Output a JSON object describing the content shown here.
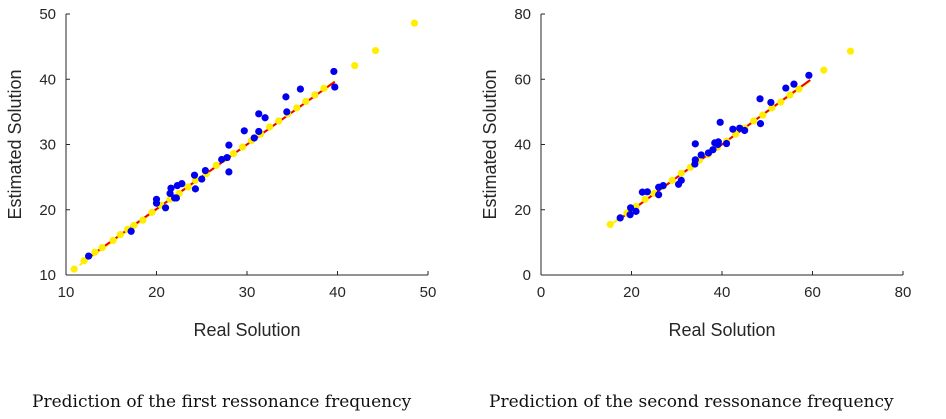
{
  "chart_data": [
    {
      "type": "scatter",
      "caption": "Prediction of the first ressonance frequency",
      "xlabel": "Real Solution",
      "ylabel": "Estimated Solution",
      "xlim": [
        10,
        50
      ],
      "ylim": [
        10,
        50
      ],
      "xticks": [
        10,
        20,
        30,
        40,
        50
      ],
      "yticks": [
        10,
        20,
        30,
        40,
        50
      ],
      "grid": false,
      "colors": {
        "blue": "#0000ee",
        "yellow": "#ffee00",
        "red": "#ee0000"
      },
      "series": [
        {
          "color": "yellow",
          "points": [
            [
              10.9,
              10.9
            ],
            [
              12.0,
              12.2
            ],
            [
              13.2,
              13.5
            ],
            [
              14.0,
              14.2
            ],
            [
              15.2,
              15.3
            ],
            [
              16.0,
              16.2
            ],
            [
              16.8,
              17.0
            ],
            [
              17.5,
              17.6
            ],
            [
              18.5,
              18.4
            ],
            [
              19.5,
              19.6
            ],
            [
              20.5,
              20.7
            ],
            [
              21.5,
              21.6
            ],
            [
              22.5,
              22.5
            ],
            [
              23.5,
              23.5
            ],
            [
              24.3,
              24.5
            ],
            [
              25.5,
              25.5
            ],
            [
              26.6,
              26.8
            ],
            [
              27.5,
              27.8
            ],
            [
              28.5,
              28.6
            ],
            [
              29.5,
              29.6
            ],
            [
              30.5,
              30.6
            ],
            [
              31.5,
              31.6
            ],
            [
              32.5,
              32.7
            ],
            [
              33.5,
              33.6
            ],
            [
              34.5,
              34.7
            ],
            [
              35.5,
              35.6
            ],
            [
              36.5,
              36.6
            ],
            [
              37.5,
              37.6
            ],
            [
              38.5,
              38.6
            ],
            [
              41.9,
              42.1
            ],
            [
              44.2,
              44.4
            ],
            [
              48.5,
              48.6
            ]
          ]
        },
        {
          "color": "blue",
          "points": [
            [
              12.5,
              12.9
            ],
            [
              17.2,
              16.7
            ],
            [
              20.0,
              21.0
            ],
            [
              20.0,
              21.6
            ],
            [
              21.0,
              20.3
            ],
            [
              21.5,
              22.5
            ],
            [
              21.6,
              23.3
            ],
            [
              22.0,
              21.8
            ],
            [
              22.2,
              21.8
            ],
            [
              22.3,
              23.7
            ],
            [
              22.8,
              24.0
            ],
            [
              24.2,
              25.3
            ],
            [
              24.3,
              23.2
            ],
            [
              25.0,
              24.7
            ],
            [
              25.4,
              26.0
            ],
            [
              27.2,
              27.7
            ],
            [
              27.8,
              28.0
            ],
            [
              28.0,
              29.9
            ],
            [
              28.0,
              25.8
            ],
            [
              29.7,
              32.1
            ],
            [
              30.8,
              31.0
            ],
            [
              31.3,
              32.0
            ],
            [
              31.3,
              34.7
            ],
            [
              32.0,
              34.1
            ],
            [
              34.3,
              37.3
            ],
            [
              34.4,
              35.0
            ],
            [
              35.9,
              38.5
            ],
            [
              39.6,
              41.2
            ],
            [
              39.7,
              38.8
            ]
          ]
        }
      ],
      "lines": [
        {
          "color": "yellow",
          "from": [
            11.5,
            11.5
          ],
          "to": [
            39.7,
            39.7
          ]
        },
        {
          "color": "red",
          "from": [
            12.2,
            12.4
          ],
          "to": [
            39.7,
            39.6
          ]
        }
      ]
    },
    {
      "type": "scatter",
      "caption": "Prediction of the second ressonance frequency",
      "xlabel": "Real Solution",
      "ylabel": "Estimated Solution",
      "xlim": [
        0,
        80
      ],
      "ylim": [
        0,
        80
      ],
      "xticks": [
        0,
        20,
        40,
        60,
        80
      ],
      "yticks": [
        0,
        20,
        40,
        60,
        80
      ],
      "grid": false,
      "colors": {
        "blue": "#0000ee",
        "yellow": "#ffee00",
        "red": "#ee0000"
      },
      "series": [
        {
          "color": "yellow",
          "points": [
            [
              15.3,
              15.5
            ],
            [
              17.5,
              17.5
            ],
            [
              19.0,
              19.0
            ],
            [
              21.0,
              21.0
            ],
            [
              23.0,
              23.2
            ],
            [
              25.0,
              25.0
            ],
            [
              27.0,
              27.2
            ],
            [
              29.0,
              29.0
            ],
            [
              31.0,
              31.2
            ],
            [
              33.0,
              33.0
            ],
            [
              35.0,
              35.2
            ],
            [
              37.0,
              37.0
            ],
            [
              39.0,
              39.2
            ],
            [
              41.0,
              41.0
            ],
            [
              43.0,
              43.2
            ],
            [
              45.0,
              45.0
            ],
            [
              47.0,
              47.2
            ],
            [
              49.0,
              49.0
            ],
            [
              51.0,
              51.2
            ],
            [
              53.0,
              53.0
            ],
            [
              55.0,
              55.2
            ],
            [
              57.0,
              57.0
            ],
            [
              62.5,
              62.8
            ],
            [
              68.4,
              68.6
            ]
          ]
        },
        {
          "color": "blue",
          "points": [
            [
              17.5,
              17.5
            ],
            [
              19.7,
              18.5
            ],
            [
              19.8,
              20.6
            ],
            [
              21.0,
              19.5
            ],
            [
              22.4,
              25.4
            ],
            [
              23.5,
              25.5
            ],
            [
              26.0,
              26.9
            ],
            [
              26.0,
              24.6
            ],
            [
              27.0,
              27.4
            ],
            [
              30.4,
              27.8
            ],
            [
              31.0,
              29.0
            ],
            [
              34.0,
              34.0
            ],
            [
              34.1,
              35.3
            ],
            [
              34.1,
              40.2
            ],
            [
              35.4,
              36.8
            ],
            [
              37.0,
              37.4
            ],
            [
              38.0,
              38.4
            ],
            [
              38.4,
              40.5
            ],
            [
              39.1,
              40.0
            ],
            [
              39.2,
              40.8
            ],
            [
              39.6,
              46.8
            ],
            [
              41.0,
              40.3
            ],
            [
              42.4,
              44.7
            ],
            [
              43.9,
              45.0
            ],
            [
              45.0,
              44.3
            ],
            [
              48.4,
              54.0
            ],
            [
              48.5,
              46.4
            ],
            [
              50.8,
              52.9
            ],
            [
              54.1,
              57.3
            ],
            [
              55.9,
              58.5
            ],
            [
              59.2,
              61.2
            ]
          ]
        }
      ],
      "lines": [
        {
          "color": "yellow",
          "from": [
            16.0,
            16.0
          ],
          "to": [
            59.5,
            59.5
          ]
        },
        {
          "color": "red",
          "from": [
            17.3,
            17.0
          ],
          "to": [
            59.5,
            59.8
          ]
        }
      ]
    }
  ]
}
